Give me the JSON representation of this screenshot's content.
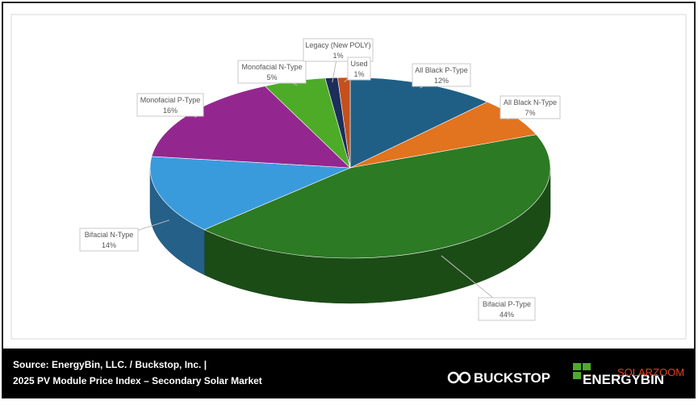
{
  "chart_data": {
    "type": "pie",
    "categories": [
      "All Black P-Type",
      "All Black N-Type",
      "Bifacial P-Type",
      "Bifacial N-Type",
      "Monofacial P-Type",
      "Monofacial N-Type",
      "Legacy (New POLY)",
      "Used"
    ],
    "values": [
      12,
      7,
      44,
      14,
      16,
      5,
      1,
      1
    ],
    "value_labels": [
      "12%",
      "7%",
      "44%",
      "14%",
      "16%",
      "5%",
      "1%",
      "1%"
    ],
    "colors": [
      "#1f5f86",
      "#e2731f",
      "#2c7a24",
      "#3a9bdc",
      "#93278f",
      "#4eab27",
      "#1c2e5c",
      "#c5501b"
    ]
  },
  "footer": {
    "source": "Source: EnergyBin, LLC. / Buckstop, Inc. |",
    "subtitle": "2025 PV Module Price Index – Secondary Solar Market",
    "logo1": "BUCKSTOP",
    "logo2": "ENERGYBIN",
    "watermark": "SOLARZOOM"
  }
}
